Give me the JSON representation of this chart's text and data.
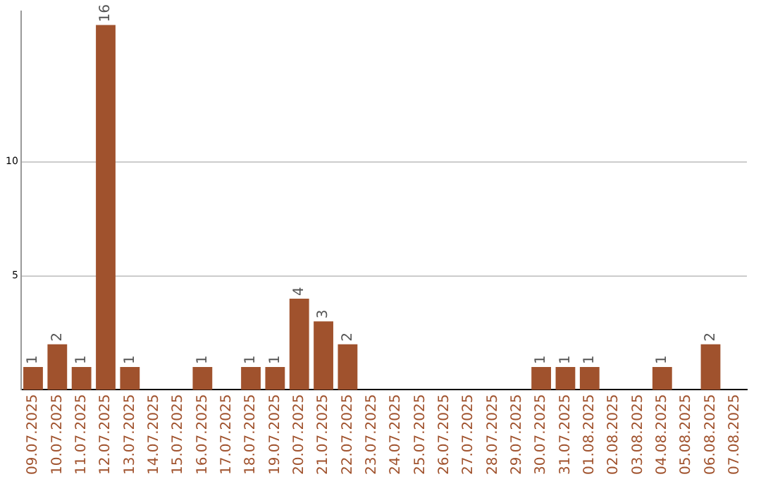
{
  "chart_data": {
    "type": "bar",
    "categories": [
      "09.07.2025",
      "10.07.2025",
      "11.07.2025",
      "12.07.2025",
      "13.07.2025",
      "14.07.2025",
      "15.07.2025",
      "16.07.2025",
      "17.07.2025",
      "18.07.2025",
      "19.07.2025",
      "20.07.2025",
      "21.07.2025",
      "22.07.2025",
      "23.07.2025",
      "24.07.2025",
      "25.07.2025",
      "26.07.2025",
      "27.07.2025",
      "28.07.2025",
      "29.07.2025",
      "30.07.2025",
      "31.07.2025",
      "01.08.2025",
      "02.08.2025",
      "03.08.2025",
      "04.08.2025",
      "05.08.2025",
      "06.08.2025",
      "07.08.2025"
    ],
    "values": [
      1,
      2,
      1,
      16,
      1,
      0,
      0,
      1,
      0,
      1,
      1,
      4,
      3,
      2,
      0,
      0,
      0,
      0,
      0,
      0,
      0,
      1,
      1,
      1,
      0,
      0,
      1,
      0,
      2,
      0
    ],
    "value_labels": [
      "1",
      "2",
      "1",
      "16",
      "1",
      null,
      null,
      "1",
      null,
      "1",
      "1",
      "4",
      "3",
      "2",
      null,
      null,
      null,
      null,
      null,
      null,
      null,
      "1",
      "1",
      "1",
      null,
      null,
      "1",
      null,
      "2",
      null
    ],
    "color": "#a0522d",
    "ylim": [
      0,
      16.6
    ],
    "yticks": [
      5,
      10
    ],
    "grid": "y",
    "legend": false
  }
}
